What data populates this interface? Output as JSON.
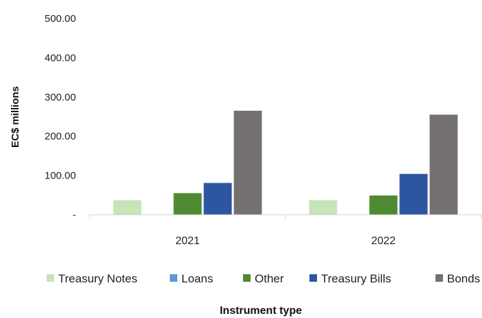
{
  "chart_data": {
    "type": "bar",
    "categories": [
      "2021",
      "2022"
    ],
    "series": [
      {
        "name": "Treasury Notes",
        "color": "#c6e5b8",
        "values": [
          37,
          37
        ]
      },
      {
        "name": "Loans",
        "color": "#5b9bd5",
        "values": [
          0,
          0
        ]
      },
      {
        "name": "Other",
        "color": "#4e8a32",
        "values": [
          55,
          49
        ]
      },
      {
        "name": "Treasury Bills",
        "color": "#2e56a0",
        "values": [
          81,
          104
        ]
      },
      {
        "name": "Bonds",
        "color": "#767171",
        "values": [
          265,
          255
        ]
      }
    ],
    "yticks": [
      "-",
      "100.00",
      "200.00",
      "300.00",
      "400.00",
      "500.00"
    ],
    "ylim": [
      0,
      500
    ],
    "ylabel": "EC$ millions",
    "xlabel": "Instrument type",
    "legend_position": "bottom",
    "grid": false
  }
}
